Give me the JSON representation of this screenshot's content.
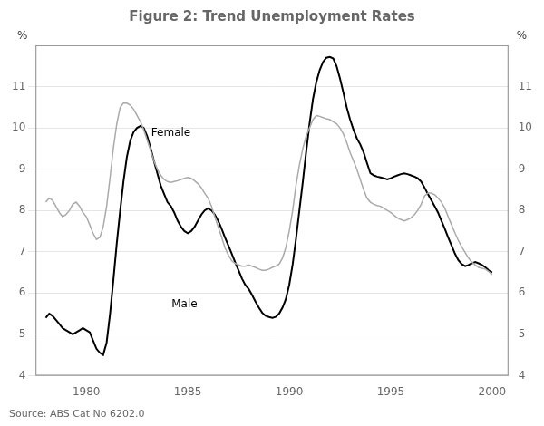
{
  "chart_data": {
    "type": "line",
    "title": "Figure 2: Trend Unemployment Rates",
    "ylabel": "%",
    "y2label": "%",
    "source": "Source: ABS Cat No 6202.0",
    "xlim": [
      1977.5,
      2000.8
    ],
    "xticks": [
      1980,
      1985,
      1990,
      1995,
      2000
    ],
    "ylim": [
      4,
      12
    ],
    "yticks": [
      4,
      5,
      6,
      7,
      8,
      9,
      10,
      11
    ],
    "y2lim": [
      4,
      12
    ],
    "y2ticks": [
      4,
      5,
      6,
      7,
      8,
      9,
      10,
      11
    ],
    "grid": true,
    "x": [
      1978.0,
      1978.17,
      1978.33,
      1978.5,
      1978.67,
      1978.83,
      1979.0,
      1979.17,
      1979.33,
      1979.5,
      1979.67,
      1979.83,
      1980.0,
      1980.17,
      1980.33,
      1980.5,
      1980.67,
      1980.83,
      1981.0,
      1981.17,
      1981.33,
      1981.5,
      1981.67,
      1981.83,
      1982.0,
      1982.17,
      1982.33,
      1982.5,
      1982.67,
      1982.83,
      1983.0,
      1983.17,
      1983.33,
      1983.5,
      1983.67,
      1983.83,
      1984.0,
      1984.17,
      1984.33,
      1984.5,
      1984.67,
      1984.83,
      1985.0,
      1985.17,
      1985.33,
      1985.5,
      1985.67,
      1985.83,
      1986.0,
      1986.17,
      1986.33,
      1986.5,
      1986.67,
      1986.83,
      1987.0,
      1987.17,
      1987.33,
      1987.5,
      1987.67,
      1987.83,
      1988.0,
      1988.17,
      1988.33,
      1988.5,
      1988.67,
      1988.83,
      1989.0,
      1989.17,
      1989.33,
      1989.5,
      1989.67,
      1989.83,
      1990.0,
      1990.17,
      1990.33,
      1990.5,
      1990.67,
      1990.83,
      1991.0,
      1991.17,
      1991.33,
      1991.5,
      1991.67,
      1991.83,
      1992.0,
      1992.17,
      1992.33,
      1992.5,
      1992.67,
      1992.83,
      1993.0,
      1993.17,
      1993.33,
      1993.5,
      1993.67,
      1993.83,
      1994.0,
      1994.17,
      1994.33,
      1994.5,
      1994.67,
      1994.83,
      1995.0,
      1995.17,
      1995.33,
      1995.5,
      1995.67,
      1995.83,
      1996.0,
      1996.17,
      1996.33,
      1996.5,
      1996.67,
      1996.83,
      1997.0,
      1997.17,
      1997.33,
      1997.5,
      1997.67,
      1997.83,
      1998.0,
      1998.17,
      1998.33,
      1998.5,
      1998.67,
      1998.83,
      1999.0,
      1999.17,
      1999.33,
      1999.5,
      1999.67,
      1999.83,
      2000.0
    ],
    "series": [
      {
        "name": "Female",
        "color": "#aaaaaa",
        "values": [
          8.2,
          8.3,
          8.25,
          8.1,
          7.95,
          7.85,
          7.9,
          8.0,
          8.15,
          8.2,
          8.1,
          7.95,
          7.85,
          7.65,
          7.45,
          7.3,
          7.35,
          7.6,
          8.1,
          8.8,
          9.5,
          10.1,
          10.5,
          10.6,
          10.6,
          10.55,
          10.45,
          10.3,
          10.15,
          9.95,
          9.7,
          9.45,
          9.2,
          9.0,
          8.85,
          8.75,
          8.7,
          8.68,
          8.7,
          8.72,
          8.75,
          8.78,
          8.8,
          8.78,
          8.72,
          8.65,
          8.55,
          8.42,
          8.3,
          8.1,
          7.85,
          7.6,
          7.35,
          7.1,
          6.92,
          6.78,
          6.72,
          6.68,
          6.65,
          6.65,
          6.68,
          6.65,
          6.62,
          6.58,
          6.55,
          6.55,
          6.58,
          6.62,
          6.65,
          6.7,
          6.85,
          7.1,
          7.5,
          8.0,
          8.6,
          9.1,
          9.5,
          9.8,
          10.0,
          10.2,
          10.3,
          10.28,
          10.25,
          10.22,
          10.2,
          10.15,
          10.1,
          10.0,
          9.85,
          9.65,
          9.4,
          9.2,
          9.0,
          8.75,
          8.5,
          8.3,
          8.2,
          8.15,
          8.12,
          8.1,
          8.05,
          8.0,
          7.95,
          7.88,
          7.82,
          7.78,
          7.75,
          7.78,
          7.82,
          7.9,
          8.0,
          8.15,
          8.35,
          8.42,
          8.42,
          8.38,
          8.3,
          8.2,
          8.05,
          7.85,
          7.65,
          7.45,
          7.28,
          7.12,
          6.98,
          6.85,
          6.75,
          6.68,
          6.62,
          6.6,
          6.58,
          6.52,
          6.45
        ]
      },
      {
        "name": "Male",
        "color": "#000000",
        "values": [
          5.4,
          5.5,
          5.45,
          5.35,
          5.25,
          5.15,
          5.1,
          5.05,
          5.0,
          5.05,
          5.1,
          5.15,
          5.1,
          5.05,
          4.85,
          4.65,
          4.55,
          4.5,
          4.8,
          5.5,
          6.3,
          7.2,
          8.0,
          8.7,
          9.3,
          9.7,
          9.9,
          10.0,
          10.05,
          10.0,
          9.8,
          9.5,
          9.2,
          8.9,
          8.6,
          8.4,
          8.2,
          8.1,
          7.95,
          7.75,
          7.6,
          7.5,
          7.45,
          7.5,
          7.6,
          7.75,
          7.9,
          8.0,
          8.05,
          8.0,
          7.9,
          7.75,
          7.55,
          7.35,
          7.15,
          6.95,
          6.75,
          6.55,
          6.35,
          6.2,
          6.1,
          5.95,
          5.8,
          5.65,
          5.52,
          5.45,
          5.42,
          5.4,
          5.42,
          5.5,
          5.65,
          5.85,
          6.2,
          6.7,
          7.3,
          8.0,
          8.7,
          9.4,
          10.1,
          10.7,
          11.1,
          11.4,
          11.6,
          11.7,
          11.72,
          11.68,
          11.5,
          11.2,
          10.85,
          10.5,
          10.2,
          9.95,
          9.75,
          9.6,
          9.4,
          9.15,
          8.9,
          8.85,
          8.82,
          8.8,
          8.78,
          8.75,
          8.78,
          8.82,
          8.85,
          8.88,
          8.9,
          8.88,
          8.85,
          8.82,
          8.78,
          8.7,
          8.55,
          8.4,
          8.25,
          8.1,
          7.95,
          7.75,
          7.55,
          7.35,
          7.15,
          6.95,
          6.8,
          6.7,
          6.65,
          6.68,
          6.72,
          6.75,
          6.72,
          6.68,
          6.62,
          6.55,
          6.5
        ]
      }
    ],
    "annotations": [
      {
        "text": "Male",
        "x": 1984.2,
        "y": 5.65
      },
      {
        "text": "Female",
        "x": 1983.2,
        "y": 9.8
      }
    ]
  }
}
